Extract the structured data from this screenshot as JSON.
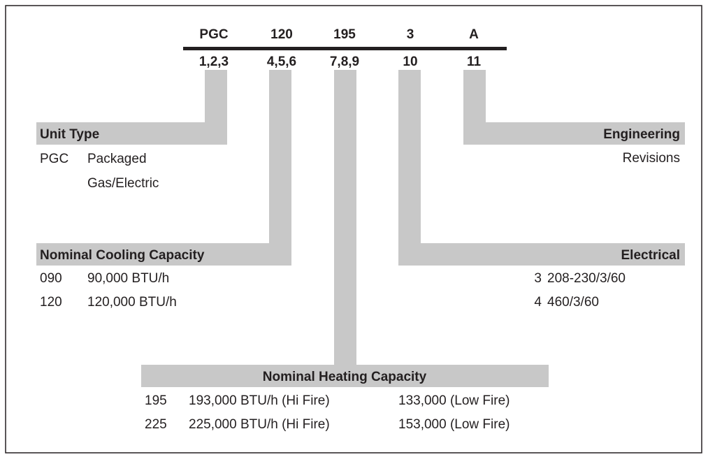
{
  "codes": [
    {
      "code": "PGC",
      "digits": "1,2,3"
    },
    {
      "code": "120",
      "digits": "4,5,6"
    },
    {
      "code": "195",
      "digits": "7,8,9"
    },
    {
      "code": "3",
      "digits": "10"
    },
    {
      "code": "A",
      "digits": "11"
    }
  ],
  "unit_type": {
    "title": "Unit Type",
    "code": "PGC",
    "lines": [
      "Packaged",
      "Gas/Electric"
    ]
  },
  "cooling": {
    "title": "Nominal Cooling Capacity",
    "rows": [
      [
        "090",
        "90,000 BTU/h"
      ],
      [
        "120",
        "120,000 BTU/h"
      ]
    ]
  },
  "engineering": {
    "title": "Engineering",
    "text": "Revisions"
  },
  "electrical": {
    "title": "Electrical",
    "rows": [
      [
        "3",
        "208-230/3/60"
      ],
      [
        "4",
        "460/3/60"
      ]
    ]
  },
  "heating": {
    "title": "Nominal Heating Capacity",
    "rows": [
      [
        "195",
        "193,000 BTU/h (Hi Fire)",
        "133,000 (Low Fire)"
      ],
      [
        "225",
        "225,000 BTU/h (Hi Fire)",
        "153,000 (Low Fire)"
      ]
    ]
  }
}
